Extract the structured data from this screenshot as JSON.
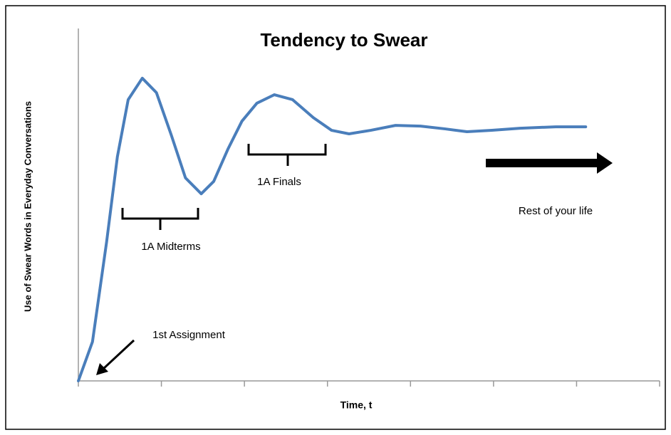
{
  "chart_data": {
    "type": "line",
    "title": "Tendency to Swear",
    "x_label": "Time, t",
    "y_label": "Use of Swear Words in Everyday Conversations",
    "annotations": [
      "1A Midterms",
      "1A Finals",
      "Rest of your life",
      "1st Assignment"
    ],
    "x": [
      0,
      0.17,
      0.34,
      0.47,
      0.6,
      0.77,
      0.94,
      1.12,
      1.29,
      1.48,
      1.63,
      1.8,
      1.97,
      2.15,
      2.36,
      2.58,
      2.83,
      3.05,
      3.26,
      3.52,
      3.82,
      4.12,
      4.42,
      4.68,
      4.98,
      5.32,
      5.75,
      6.11
    ],
    "series": [
      {
        "color": "#4a7ebb",
        "values": [
          0,
          11.1,
          39.4,
          63.6,
          79.8,
          85.9,
          81.8,
          69.7,
          57.6,
          53.1,
          56.6,
          65.7,
          73.7,
          78.8,
          81.2,
          79.8,
          74.7,
          71.1,
          70.1,
          71.1,
          72.5,
          72.3,
          71.5,
          70.7,
          71.1,
          71.7,
          72.1,
          72.1
        ]
      }
    ],
    "xlim": [
      0,
      7
    ],
    "ylim": [
      0,
      100
    ],
    "xticks": [
      0,
      1,
      2,
      3,
      4,
      5,
      6,
      7
    ]
  }
}
